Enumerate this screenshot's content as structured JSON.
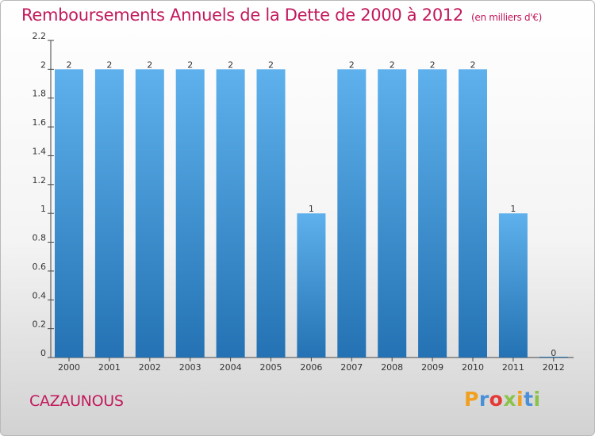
{
  "title": "Remboursements Annuels de la Dette de 2000 à 2012",
  "unit": "(en milliers d'€)",
  "city": "CAZAUNOUS",
  "logo": {
    "letters": [
      "P",
      "r",
      "o",
      "x",
      "i",
      "t",
      "i"
    ],
    "colors": [
      "#f0a01e",
      "#4a90d9",
      "#e53935",
      "#8bc34a",
      "#f0a01e",
      "#4a90d9",
      "#8bc34a"
    ]
  },
  "colors": {
    "title": "#c2185b",
    "bar_top": "#5eb1ec",
    "bar_bottom": "#2472b3"
  },
  "chart_data": {
    "type": "bar",
    "title": "Remboursements Annuels de la Dette de 2000 à 2012",
    "xlabel": "",
    "ylabel": "",
    "categories": [
      "2000",
      "2001",
      "2002",
      "2003",
      "2004",
      "2005",
      "2006",
      "2007",
      "2008",
      "2009",
      "2010",
      "2011",
      "2012"
    ],
    "values": [
      2,
      2,
      2,
      2,
      2,
      2,
      1,
      2,
      2,
      2,
      2,
      1,
      0
    ],
    "data_labels": [
      "2",
      "2",
      "2",
      "2",
      "2",
      "2",
      "1",
      "2",
      "2",
      "2",
      "2",
      "1",
      "0"
    ],
    "ylim": [
      0,
      2.2
    ],
    "yticks": [
      0,
      0.2,
      0.4,
      0.6,
      0.8,
      1,
      1.2,
      1.4,
      1.6,
      1.8,
      2,
      2.2
    ],
    "ytick_labels": [
      "0",
      "0.2",
      "0.4",
      "0.6",
      "0.8",
      "1",
      "1.2",
      "1.4",
      "1.6",
      "1.8",
      "2",
      "2.2"
    ],
    "grid": false,
    "legend": "none"
  }
}
